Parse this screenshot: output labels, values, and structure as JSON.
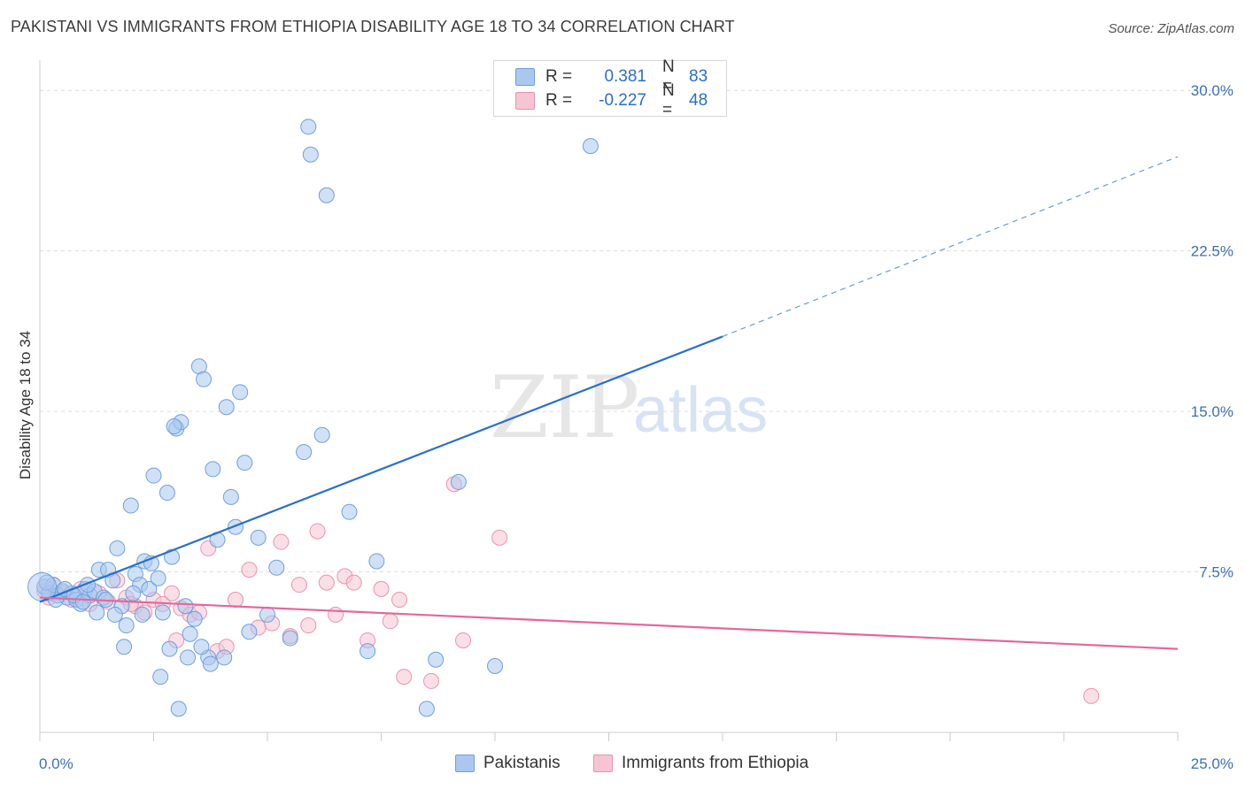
{
  "title": "PAKISTANI VS IMMIGRANTS FROM ETHIOPIA DISABILITY AGE 18 TO 34 CORRELATION CHART",
  "source": "Source: ZipAtlas.com",
  "watermark": {
    "zip": "ZIP",
    "atlas": "atlas"
  },
  "legend": {
    "rows": [
      {
        "r_key": "R =",
        "r_val": "0.381",
        "n_key": "N =",
        "n_val": "83",
        "color": "#aac8ef"
      },
      {
        "r_key": "R =",
        "r_val": "-0.227",
        "n_key": "N =",
        "n_val": "48",
        "color": "#f7bfd0"
      }
    ]
  },
  "colors": {
    "blue_fill": "#aac8ef",
    "blue_stroke": "#6f9fde",
    "blue_line": "#2a6fcf",
    "pink_fill": "#f7c4d3",
    "pink_stroke": "#ea93ae",
    "pink_line": "#e4689a",
    "grid": "#dcdcdc",
    "tick_label": "#3a6fc0"
  },
  "chart_data": {
    "type": "scatter",
    "title": "PAKISTANI VS IMMIGRANTS FROM ETHIOPIA DISABILITY AGE 18 TO 34 CORRELATION CHART",
    "xlabel": "",
    "ylabel": "Disability Age 18 to 34",
    "xlim": [
      0,
      25
    ],
    "ylim": [
      0,
      31
    ],
    "x_tick_labels": [
      "0.0%",
      "25.0%"
    ],
    "y_ticks": [
      7.5,
      15.0,
      22.5,
      30.0
    ],
    "y_tick_labels": [
      "7.5%",
      "15.0%",
      "22.5%",
      "30.0%"
    ],
    "grid": "horizontal dashed",
    "legend_position": "top-center",
    "series": [
      {
        "name": "Pakistanis",
        "r": 0.381,
        "n": 83,
        "trend": {
          "x0": 0,
          "y0": 6.1,
          "x1": 15,
          "y1": 18.5,
          "x_dash_end": 25,
          "y_dash_end": 26.9
        },
        "points": [
          [
            0.1,
            6.8
          ],
          [
            0.2,
            6.5
          ],
          [
            0.3,
            6.9
          ],
          [
            0.4,
            6.4
          ],
          [
            0.5,
            6.6
          ],
          [
            0.6,
            6.3
          ],
          [
            0.7,
            6.5
          ],
          [
            0.8,
            6.2
          ],
          [
            0.9,
            6.0
          ],
          [
            1.0,
            6.7
          ],
          [
            1.1,
            6.4
          ],
          [
            1.2,
            6.6
          ],
          [
            1.3,
            7.6
          ],
          [
            1.4,
            6.3
          ],
          [
            1.5,
            7.6
          ],
          [
            1.6,
            7.1
          ],
          [
            1.7,
            8.6
          ],
          [
            1.8,
            5.9
          ],
          [
            1.9,
            5.0
          ],
          [
            2.0,
            10.6
          ],
          [
            2.1,
            7.4
          ],
          [
            2.2,
            6.9
          ],
          [
            2.3,
            8.0
          ],
          [
            2.4,
            6.7
          ],
          [
            2.5,
            12.0
          ],
          [
            2.6,
            7.2
          ],
          [
            2.7,
            5.6
          ],
          [
            2.8,
            11.2
          ],
          [
            2.9,
            8.2
          ],
          [
            3.0,
            14.2
          ],
          [
            3.1,
            14.5
          ],
          [
            3.2,
            5.9
          ],
          [
            3.3,
            4.6
          ],
          [
            3.4,
            5.3
          ],
          [
            3.5,
            17.1
          ],
          [
            3.6,
            16.5
          ],
          [
            3.7,
            3.5
          ],
          [
            3.8,
            12.3
          ],
          [
            3.9,
            9.0
          ],
          [
            4.1,
            15.2
          ],
          [
            4.2,
            11.0
          ],
          [
            4.3,
            9.6
          ],
          [
            4.4,
            15.9
          ],
          [
            4.5,
            12.6
          ],
          [
            4.6,
            4.7
          ],
          [
            4.8,
            9.1
          ],
          [
            5.0,
            5.5
          ],
          [
            5.2,
            7.7
          ],
          [
            5.5,
            4.4
          ],
          [
            5.8,
            13.1
          ],
          [
            5.9,
            28.3
          ],
          [
            6.2,
            13.9
          ],
          [
            6.3,
            25.1
          ],
          [
            6.8,
            10.3
          ],
          [
            7.2,
            3.8
          ],
          [
            7.4,
            8.0
          ],
          [
            8.5,
            1.1
          ],
          [
            8.7,
            3.4
          ],
          [
            10.0,
            3.1
          ],
          [
            12.1,
            27.4
          ],
          [
            0.15,
            7.0
          ],
          [
            0.35,
            6.2
          ],
          [
            0.55,
            6.7
          ],
          [
            0.75,
            6.4
          ],
          [
            0.95,
            6.1
          ],
          [
            1.05,
            6.9
          ],
          [
            1.25,
            5.6
          ],
          [
            1.45,
            6.2
          ],
          [
            1.65,
            5.5
          ],
          [
            1.85,
            4.0
          ],
          [
            2.05,
            6.5
          ],
          [
            2.25,
            5.5
          ],
          [
            2.45,
            7.9
          ],
          [
            2.65,
            2.6
          ],
          [
            2.85,
            3.9
          ],
          [
            3.05,
            1.1
          ],
          [
            3.25,
            3.5
          ],
          [
            3.55,
            4.0
          ],
          [
            3.75,
            3.2
          ],
          [
            4.05,
            3.5
          ],
          [
            5.95,
            27.0
          ],
          [
            9.2,
            11.7
          ],
          [
            2.95,
            14.3
          ]
        ]
      },
      {
        "name": "Immigrants from Ethiopia",
        "r": -0.227,
        "n": 48,
        "trend": {
          "x0": 0,
          "y0": 6.3,
          "x1": 25,
          "y1": 3.9
        },
        "points": [
          [
            0.1,
            6.6
          ],
          [
            0.2,
            6.3
          ],
          [
            0.3,
            6.9
          ],
          [
            0.5,
            6.5
          ],
          [
            0.7,
            6.2
          ],
          [
            0.9,
            6.7
          ],
          [
            1.1,
            6.0
          ],
          [
            1.3,
            6.5
          ],
          [
            1.5,
            6.1
          ],
          [
            1.7,
            7.1
          ],
          [
            1.9,
            6.3
          ],
          [
            2.1,
            5.9
          ],
          [
            2.3,
            5.6
          ],
          [
            2.5,
            6.2
          ],
          [
            2.7,
            6.0
          ],
          [
            2.9,
            6.5
          ],
          [
            3.1,
            5.8
          ],
          [
            3.3,
            5.5
          ],
          [
            3.5,
            5.6
          ],
          [
            3.7,
            8.6
          ],
          [
            3.9,
            3.8
          ],
          [
            4.1,
            4.0
          ],
          [
            4.3,
            6.2
          ],
          [
            4.6,
            7.6
          ],
          [
            4.8,
            4.9
          ],
          [
            5.1,
            5.1
          ],
          [
            5.3,
            8.9
          ],
          [
            5.5,
            4.5
          ],
          [
            5.7,
            6.9
          ],
          [
            5.9,
            5.0
          ],
          [
            6.1,
            9.4
          ],
          [
            6.3,
            7.0
          ],
          [
            6.5,
            5.5
          ],
          [
            6.7,
            7.3
          ],
          [
            6.9,
            7.0
          ],
          [
            7.2,
            4.3
          ],
          [
            7.5,
            6.7
          ],
          [
            7.7,
            5.2
          ],
          [
            7.9,
            6.2
          ],
          [
            8.0,
            2.6
          ],
          [
            8.6,
            2.4
          ],
          [
            9.1,
            11.6
          ],
          [
            9.3,
            4.3
          ],
          [
            10.1,
            9.1
          ],
          [
            0.4,
            6.4
          ],
          [
            2.0,
            6.0
          ],
          [
            3.0,
            4.3
          ],
          [
            23.1,
            1.7
          ]
        ]
      }
    ]
  }
}
